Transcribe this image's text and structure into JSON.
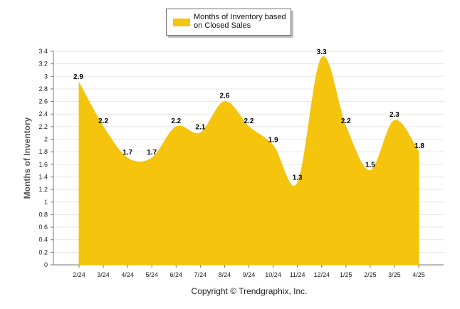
{
  "legend": {
    "label": "Months of Inventory based on Closed Sales"
  },
  "footer": {
    "copyright": "Copyright © Trendgraphix, Inc."
  },
  "colors": {
    "area": "#f5c40c",
    "grid": "#e6e6e6",
    "axis": "#777777",
    "text": "#222222"
  },
  "chart_data": {
    "type": "area",
    "categories": [
      "2/24",
      "3/24",
      "4/24",
      "5/24",
      "6/24",
      "7/24",
      "8/24",
      "9/24",
      "10/24",
      "11/24",
      "12/24",
      "1/25",
      "2/25",
      "3/25",
      "4/25"
    ],
    "series": [
      {
        "name": "Months of Inventory based on Closed Sales",
        "values": [
          2.9,
          2.2,
          1.7,
          1.7,
          2.2,
          2.1,
          2.6,
          2.2,
          1.9,
          1.3,
          3.3,
          2.2,
          1.5,
          2.3,
          1.8
        ]
      }
    ],
    "xlabel": "",
    "ylabel": "Months of Inventory",
    "ylim": [
      0,
      3.4
    ],
    "yticks": [
      "0",
      "0.2",
      "0.4",
      "0.6",
      "0.8",
      "1",
      "1.2",
      "1.4",
      "1.6",
      "1.8",
      "2",
      "2.2",
      "2.4",
      "2.6",
      "2.8",
      "3",
      "3.2",
      "3.4"
    ],
    "grid": true,
    "legend_position": "top-center",
    "data_labels": true
  }
}
